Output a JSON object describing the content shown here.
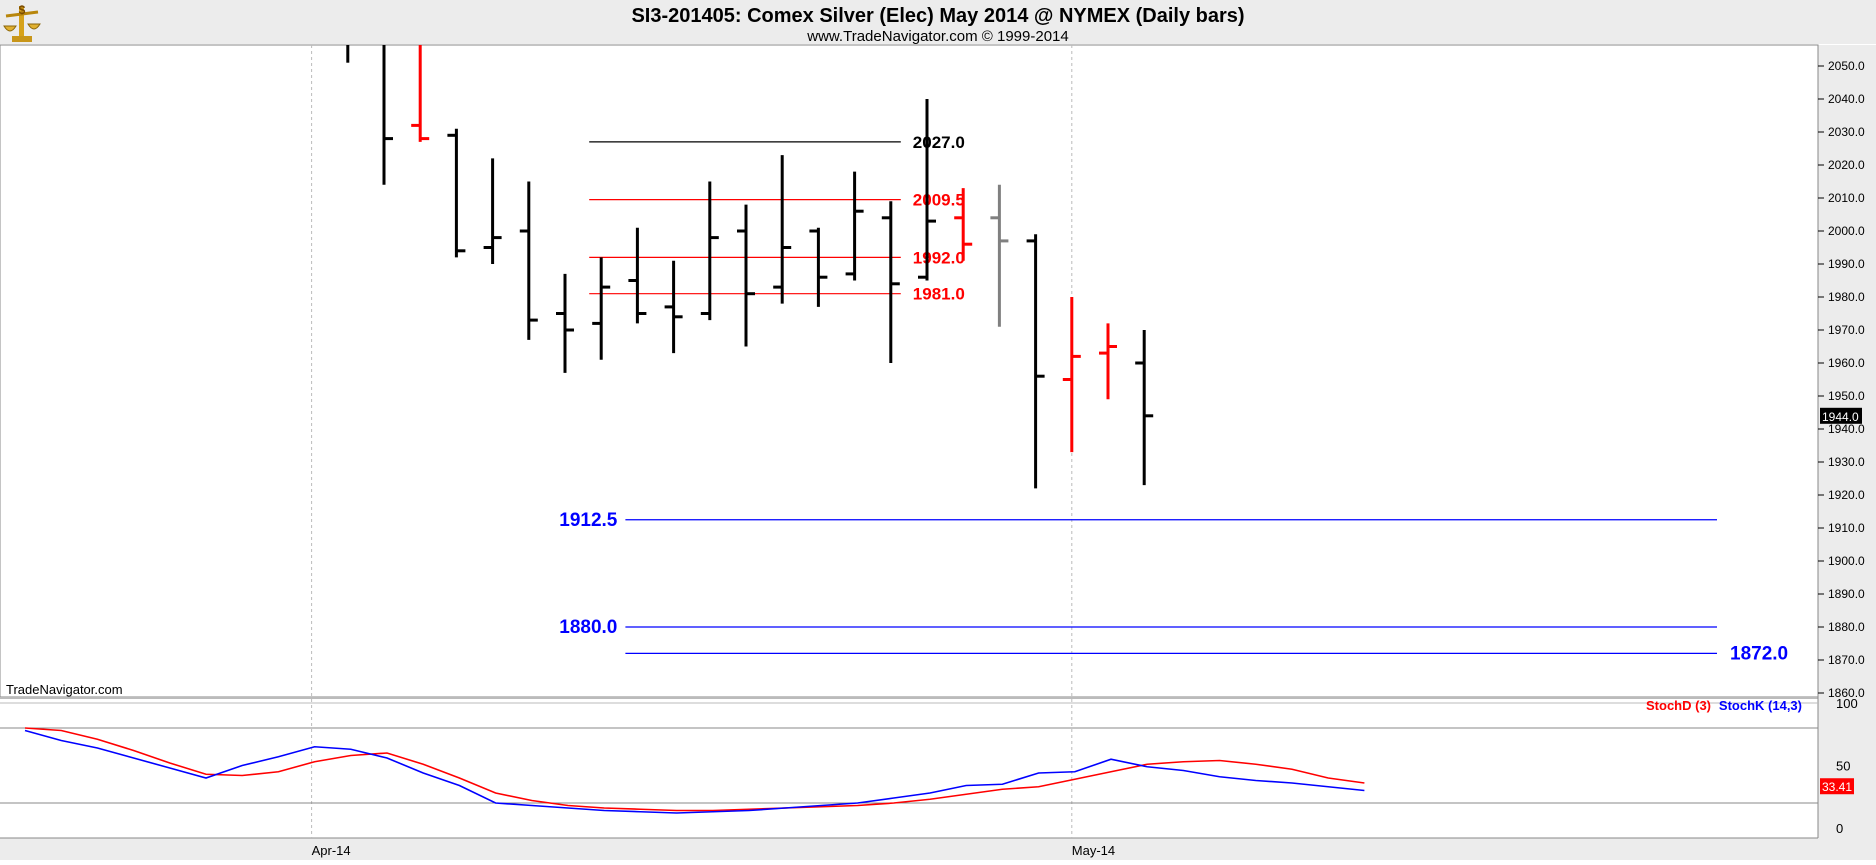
{
  "header": {
    "title": "SI3-201405:  Comex Silver (Elec) May 2014 @ NYMEX  (Daily bars)",
    "subtitle": "www.TradeNavigator.com © 1999-2014",
    "watermark": "TradeNavigator.com",
    "logo_icon": "dollar-scale-logo-icon"
  },
  "colors": {
    "up": "#000000",
    "down": "#ff0000",
    "neutral": "#808080",
    "resistance": "#ff0000",
    "top_line": "#000000",
    "support": "#0000ff",
    "stochD": "#ff0000",
    "stochK": "#0000ff",
    "last_price_bg": "#000000",
    "stoch_badge_bg": "#ff0000"
  },
  "chart_data": [
    {
      "type": "ohlc",
      "title": "SI3-201405:  Comex Silver (Elec) May 2014 @ NYMEX  (Daily bars)",
      "ylim": [
        1855,
        2057
      ],
      "yticks": [
        "2050.0",
        "2040.0",
        "2030.0",
        "2020.0",
        "2010.0",
        "2000.0",
        "1990.0",
        "1980.0",
        "1970.0",
        "1960.0",
        "1950.0",
        "1940.0",
        "1930.0",
        "1920.0",
        "1910.0",
        "1900.0",
        "1890.0",
        "1880.0",
        "1870.0",
        "1860.0"
      ],
      "xticks": [
        {
          "label": "Apr-14",
          "bar": 8
        },
        {
          "label": "May-14",
          "bar": 29
        }
      ],
      "bars": [
        {
          "o": null,
          "h": 2058,
          "l": 2051,
          "c": null,
          "color": "up"
        },
        {
          "o": null,
          "h": 2058,
          "l": 2014,
          "c": 2028,
          "color": "up"
        },
        {
          "o": 2032,
          "h": 2058,
          "l": 2027,
          "c": 2028,
          "color": "down"
        },
        {
          "o": 2029,
          "h": 2031,
          "l": 1992,
          "c": 1994,
          "color": "up"
        },
        {
          "o": 1995,
          "h": 2022,
          "l": 1990,
          "c": 1998,
          "color": "up"
        },
        {
          "o": 2000,
          "h": 2015,
          "l": 1967,
          "c": 1973,
          "color": "up"
        },
        {
          "o": 1975,
          "h": 1987,
          "l": 1957,
          "c": 1970,
          "color": "up"
        },
        {
          "o": 1972,
          "h": 1992,
          "l": 1961,
          "c": 1983,
          "color": "up"
        },
        {
          "o": 1985,
          "h": 2001,
          "l": 1972,
          "c": 1975,
          "color": "up"
        },
        {
          "o": 1977,
          "h": 1991,
          "l": 1963,
          "c": 1974,
          "color": "up"
        },
        {
          "o": 1975,
          "h": 2015,
          "l": 1973,
          "c": 1998,
          "color": "up"
        },
        {
          "o": 2000,
          "h": 2008,
          "l": 1965,
          "c": 1981,
          "color": "up"
        },
        {
          "o": 1983,
          "h": 2023,
          "l": 1978,
          "c": 1995,
          "color": "up"
        },
        {
          "o": 2000,
          "h": 2001,
          "l": 1977,
          "c": 1986,
          "color": "up"
        },
        {
          "o": 1987,
          "h": 2018,
          "l": 1985,
          "c": 2006,
          "color": "up"
        },
        {
          "o": 2004,
          "h": 2009,
          "l": 1960,
          "c": 1984,
          "color": "up"
        },
        {
          "o": 1986,
          "h": 2040,
          "l": 1985,
          "c": 2003,
          "color": "up"
        },
        {
          "o": 2004,
          "h": 2013,
          "l": 1991,
          "c": 1996,
          "color": "down"
        },
        {
          "o": 2004,
          "h": 2014,
          "l": 1971,
          "c": 1997,
          "color": "neutral"
        },
        {
          "o": 1997,
          "h": 1999,
          "l": 1922,
          "c": 1956,
          "color": "up"
        },
        {
          "o": 1955,
          "h": 1980,
          "l": 1933,
          "c": 1962,
          "color": "down"
        },
        {
          "o": 1963,
          "h": 1972,
          "l": 1949,
          "c": 1965,
          "color": "down"
        },
        {
          "o": 1960,
          "h": 1970,
          "l": 1923,
          "c": 1944,
          "color": "up"
        }
      ],
      "last_price": "1944.0",
      "levels": [
        {
          "value": 2027.0,
          "label": "2027.0",
          "color": "top_line",
          "from_bar": 16,
          "to_bar": 24,
          "label_side": "right"
        },
        {
          "value": 2009.5,
          "label": "2009.5",
          "color": "resistance",
          "from_bar": 16,
          "to_bar": 24,
          "label_side": "right"
        },
        {
          "value": 1992.0,
          "label": "1992.0",
          "color": "resistance",
          "from_bar": 16,
          "to_bar": 24,
          "label_side": "right"
        },
        {
          "value": 1981.0,
          "label": "1981.0",
          "color": "resistance",
          "from_bar": 16,
          "to_bar": 24,
          "label_side": "right"
        },
        {
          "value": 1912.5,
          "label": "1912.5",
          "color": "support",
          "from_bar": 17,
          "to_bar": 36,
          "label_side": "left"
        },
        {
          "value": 1880.0,
          "label": "1880.0",
          "color": "support",
          "from_bar": 17,
          "to_bar": 36,
          "label_side": "left"
        },
        {
          "value": 1872.0,
          "label": "1872.0",
          "color": "support",
          "from_bar": 17,
          "to_bar": 36,
          "label_side": "right-end"
        }
      ]
    },
    {
      "type": "line",
      "legend": [
        "StochD (3)",
        "StochK (14,3)"
      ],
      "ylim": [
        -5,
        100
      ],
      "yticks": [
        "100",
        "50",
        "0"
      ],
      "reference_lines": [
        80,
        20
      ],
      "badge_value": "33.41",
      "series": [
        {
          "name": "StochD (3)",
          "color": "stochD",
          "start_bar": 0,
          "values": [
            80,
            78,
            71,
            62,
            52,
            43,
            42,
            45,
            53,
            58,
            60,
            51,
            40,
            28,
            22,
            18,
            16,
            15,
            14,
            14,
            15,
            16,
            17,
            18,
            20,
            23,
            27,
            31,
            33,
            39,
            45,
            51,
            53,
            54,
            51,
            47,
            40,
            36
          ]
        },
        {
          "name": "StochK (14,3)",
          "color": "stochK",
          "start_bar": 0,
          "values": [
            78,
            70,
            64,
            56,
            48,
            40,
            50,
            57,
            65,
            63,
            56,
            44,
            34,
            20,
            18,
            16,
            14,
            13,
            12,
            13,
            14,
            16,
            18,
            20,
            24,
            28,
            34,
            35,
            44,
            45,
            55,
            49,
            46,
            41,
            38,
            36,
            33,
            30
          ]
        }
      ]
    }
  ]
}
